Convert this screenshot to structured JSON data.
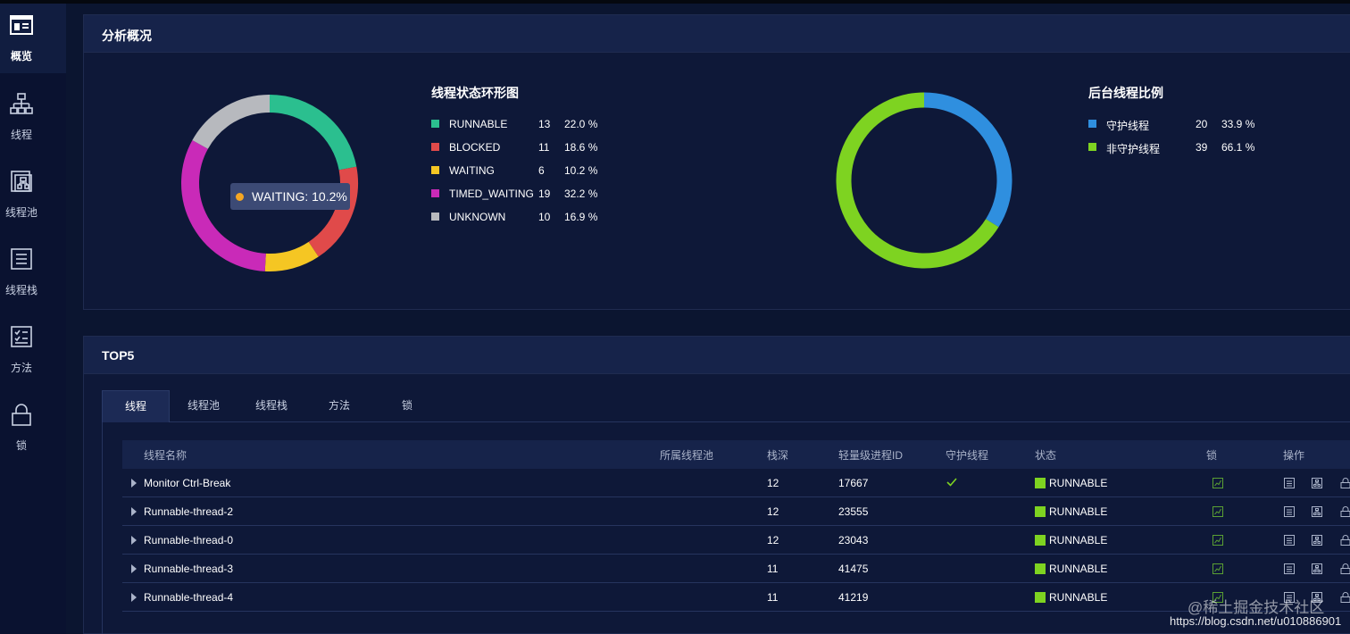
{
  "sidebar": {
    "items": [
      {
        "label": "概览",
        "icon": "overview-icon",
        "active": true
      },
      {
        "label": "线程",
        "icon": "thread-tree-icon"
      },
      {
        "label": "线程池",
        "icon": "thread-pool-icon"
      },
      {
        "label": "线程栈",
        "icon": "thread-stack-icon"
      },
      {
        "label": "方法",
        "icon": "method-checklist-icon"
      },
      {
        "label": "锁",
        "icon": "lock-icon"
      }
    ]
  },
  "analysis": {
    "title": "分析概况",
    "thread_state": {
      "title": "线程状态环形图",
      "items": [
        {
          "name": "RUNNABLE",
          "count": "13",
          "pct": "22.0 %",
          "color": "#2bbf8f"
        },
        {
          "name": "BLOCKED",
          "count": "11",
          "pct": "18.6 %",
          "color": "#e04a4a"
        },
        {
          "name": "WAITING",
          "count": "6",
          "pct": "10.2 %",
          "color": "#f5c623"
        },
        {
          "name": "TIMED_WAITING",
          "count": "19",
          "pct": "32.2 %",
          "color": "#c92ab8"
        },
        {
          "name": "UNKNOWN",
          "count": "10",
          "pct": "16.9 %",
          "color": "#b7b9be"
        }
      ],
      "tooltip": "WAITING: 10.2%"
    },
    "daemon": {
      "title": "后台线程比例",
      "items": [
        {
          "name": "守护线程",
          "count": "20",
          "pct": "33.9 %",
          "color": "#2f8fdf"
        },
        {
          "name": "非守护线程",
          "count": "39",
          "pct": "66.1 %",
          "color": "#7ed321"
        }
      ]
    }
  },
  "top5": {
    "title": "TOP5",
    "tabs": [
      "线程",
      "线程池",
      "线程栈",
      "方法",
      "锁"
    ],
    "columns": {
      "name": "线程名称",
      "pool": "所属线程池",
      "depth": "栈深",
      "lwp": "轻量级进程ID",
      "daemon": "守护线程",
      "state": "状态",
      "lock": "锁",
      "ops": "操作"
    },
    "rows": [
      {
        "name": "Monitor Ctrl-Break",
        "depth": "12",
        "lwp": "17667",
        "daemon": true,
        "state": "RUNNABLE"
      },
      {
        "name": "Runnable-thread-2",
        "depth": "12",
        "lwp": "23555",
        "daemon": false,
        "state": "RUNNABLE"
      },
      {
        "name": "Runnable-thread-0",
        "depth": "12",
        "lwp": "23043",
        "daemon": false,
        "state": "RUNNABLE"
      },
      {
        "name": "Runnable-thread-3",
        "depth": "11",
        "lwp": "41475",
        "daemon": false,
        "state": "RUNNABLE"
      },
      {
        "name": "Runnable-thread-4",
        "depth": "11",
        "lwp": "41219",
        "daemon": false,
        "state": "RUNNABLE"
      }
    ]
  },
  "watermark": {
    "line1": "@稀土掘金技术社区",
    "line2": "https://blog.csdn.net/u010886901"
  }
}
